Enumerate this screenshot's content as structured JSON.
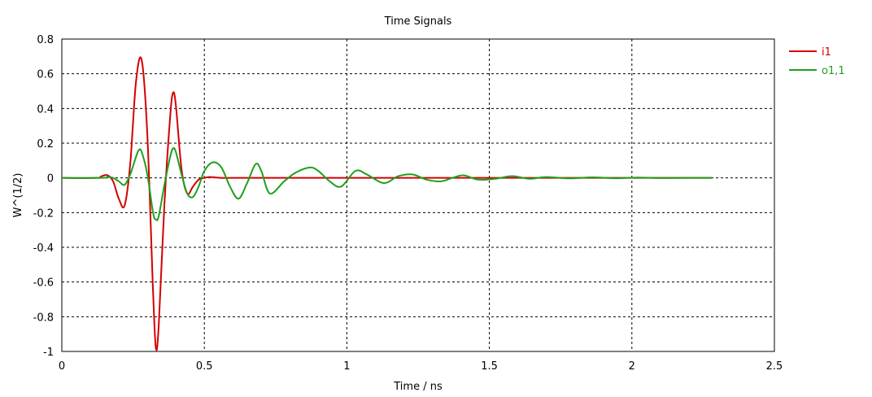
{
  "chart_data": {
    "type": "line",
    "title": "Time Signals",
    "xlabel": "Time / ns",
    "ylabel": "W^(1/2)",
    "xlim": [
      0,
      2.5
    ],
    "ylim": [
      -1,
      0.8
    ],
    "xticks": [
      0,
      0.5,
      1,
      1.5,
      2,
      2.5
    ],
    "xtick_labels": [
      "0",
      "0.5",
      "1",
      "1.5",
      "2",
      "2.5"
    ],
    "yticks": [
      0.8,
      0.6,
      0.4,
      0.2,
      0,
      -0.2,
      -0.4,
      -0.6,
      -0.8,
      -1
    ],
    "ytick_labels": [
      "0.8",
      "0.6",
      "0.4",
      "0.2",
      "0",
      "-0.2",
      "-0.4",
      "-0.6",
      "-0.8",
      "-1"
    ],
    "grid": true,
    "legend_position": "right",
    "series": [
      {
        "name": "i1",
        "color": "#d40000",
        "x": [
          0,
          0.12,
          0.14,
          0.16,
          0.18,
          0.2,
          0.22,
          0.24,
          0.26,
          0.28,
          0.3,
          0.32,
          0.33,
          0.34,
          0.36,
          0.38,
          0.39,
          0.4,
          0.42,
          0.44,
          0.46,
          0.48,
          0.5,
          0.52,
          0.56,
          0.6,
          1.0,
          2.28
        ],
        "y": [
          0,
          0,
          0.01,
          0.015,
          -0.02,
          -0.12,
          -0.16,
          0.08,
          0.55,
          0.68,
          0.25,
          -0.65,
          -0.98,
          -0.85,
          -0.15,
          0.35,
          0.49,
          0.42,
          0.05,
          -0.09,
          -0.05,
          -0.01,
          0.0,
          0.005,
          0.0,
          0.0,
          0.0,
          0.0
        ]
      },
      {
        "name": "o1,1",
        "color": "#1ea01e",
        "x": [
          0,
          0.14,
          0.16,
          0.18,
          0.2,
          0.22,
          0.24,
          0.26,
          0.27,
          0.28,
          0.3,
          0.32,
          0.33,
          0.34,
          0.36,
          0.38,
          0.39,
          0.4,
          0.42,
          0.44,
          0.46,
          0.48,
          0.5,
          0.53,
          0.56,
          0.59,
          0.62,
          0.65,
          0.68,
          0.7,
          0.73,
          0.78,
          0.82,
          0.87,
          0.9,
          0.94,
          0.98,
          1.03,
          1.07,
          1.13,
          1.18,
          1.23,
          1.28,
          1.33,
          1.37,
          1.41,
          1.46,
          1.52,
          1.58,
          1.64,
          1.7,
          1.78,
          1.86,
          1.94,
          2.02,
          2.1,
          2.2,
          2.28
        ],
        "y": [
          0,
          0,
          0.005,
          0.0,
          -0.02,
          -0.04,
          0.02,
          0.12,
          0.16,
          0.15,
          0.02,
          -0.2,
          -0.24,
          -0.22,
          -0.04,
          0.12,
          0.17,
          0.15,
          0.02,
          -0.09,
          -0.11,
          -0.05,
          0.04,
          0.09,
          0.06,
          -0.05,
          -0.12,
          -0.03,
          0.08,
          0.04,
          -0.09,
          -0.02,
          0.03,
          0.06,
          0.04,
          -0.02,
          -0.05,
          0.04,
          0.02,
          -0.03,
          0.01,
          0.02,
          -0.01,
          -0.02,
          0.0,
          0.015,
          -0.01,
          -0.005,
          0.01,
          -0.005,
          0.005,
          -0.003,
          0.003,
          -0.002,
          0.002,
          -0.001,
          0.0,
          0.0
        ]
      }
    ]
  }
}
